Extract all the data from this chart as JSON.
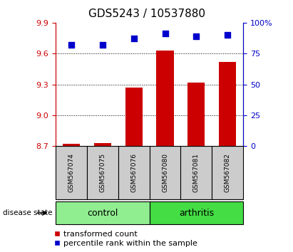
{
  "title": "GDS5243 / 10537880",
  "samples": [
    "GSM567074",
    "GSM567075",
    "GSM567076",
    "GSM567080",
    "GSM567081",
    "GSM567082"
  ],
  "bar_values": [
    8.72,
    8.73,
    9.27,
    9.63,
    9.32,
    9.52
  ],
  "bar_bottom": 8.7,
  "percentile_values": [
    82,
    82,
    87,
    91,
    89,
    90
  ],
  "groups": [
    {
      "label": "control",
      "indices": [
        0,
        1,
        2
      ],
      "color": "#90ee90"
    },
    {
      "label": "arthritis",
      "indices": [
        3,
        4,
        5
      ],
      "color": "#44dd44"
    }
  ],
  "ylim_left": [
    8.7,
    9.9
  ],
  "yticks_left": [
    8.7,
    9.0,
    9.3,
    9.6,
    9.9
  ],
  "ylim_right": [
    0,
    100
  ],
  "yticks_right": [
    0,
    25,
    50,
    75,
    100
  ],
  "bar_color": "#cc0000",
  "dot_color": "#0000cc",
  "dot_size": 35,
  "bar_width": 0.55,
  "grid_color": "black",
  "grid_style": "dotted",
  "label_bar": "transformed count",
  "label_dot": "percentile rank within the sample",
  "tick_color_left": "#cc0000",
  "tick_color_right": "#0000cc",
  "sample_box_color": "#cccccc",
  "disease_state_label": "disease state",
  "title_fontsize": 11,
  "tick_fontsize": 8,
  "legend_fontsize": 8,
  "sample_fontsize": 6.5,
  "group_fontsize": 9
}
